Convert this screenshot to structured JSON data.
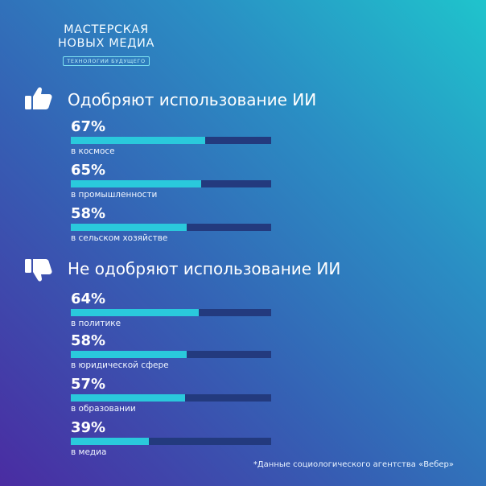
{
  "logo": {
    "line1": "МАСТЕРСКАЯ",
    "line2": "НОВЫХ МЕДИА",
    "tagline": "ТЕХНОЛОГИИ БУДУЩЕГО"
  },
  "colors": {
    "bar_fill": "#2ac9dc",
    "bar_track": "#233a7e"
  },
  "icons": {
    "approve": "thumbs-up-icon",
    "disapprove": "thumbs-down-icon"
  },
  "chart_data": [
    {
      "type": "bar",
      "orientation": "horizontal",
      "title": "Одобряют использование ИИ",
      "categories": [
        "в космосе",
        "в промышленности",
        "в сельском хозяйстве"
      ],
      "values": [
        67,
        65,
        58
      ],
      "value_labels": [
        "67%",
        "65%",
        "58%"
      ],
      "xlim": [
        0,
        100
      ]
    },
    {
      "type": "bar",
      "orientation": "horizontal",
      "title": "Не одобряют использование ИИ",
      "categories": [
        "в политике",
        "в юридической сфере",
        "в образовании",
        "в медиа"
      ],
      "values": [
        64,
        58,
        57,
        39
      ],
      "value_labels": [
        "64%",
        "58%",
        "57%",
        "39%"
      ],
      "xlim": [
        0,
        100
      ]
    }
  ],
  "footnote": "*Данные социологического агентства «Вебер»"
}
